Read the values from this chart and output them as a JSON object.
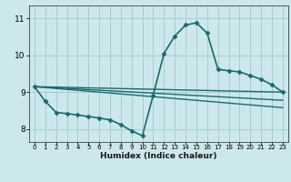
{
  "xlabel": "Humidex (Indice chaleur)",
  "background_color": "#cce8ec",
  "line_color": "#1a6b6b",
  "grid_color": "#aacccc",
  "xlim": [
    -0.5,
    23.5
  ],
  "ylim": [
    7.65,
    11.35
  ],
  "xticks": [
    0,
    1,
    2,
    3,
    4,
    5,
    6,
    7,
    8,
    9,
    10,
    11,
    12,
    13,
    14,
    15,
    16,
    17,
    18,
    19,
    20,
    21,
    22,
    23
  ],
  "yticks": [
    8,
    9,
    10,
    11
  ],
  "series": [
    {
      "x": [
        0,
        1,
        2,
        3,
        4,
        5,
        6,
        7,
        8,
        9,
        10,
        11,
        12,
        13,
        14,
        15,
        16,
        17,
        18,
        19,
        20,
        21,
        22,
        23
      ],
      "y": [
        9.15,
        8.75,
        8.45,
        8.42,
        8.38,
        8.34,
        8.3,
        8.25,
        8.12,
        7.95,
        7.82,
        8.92,
        10.05,
        10.52,
        10.82,
        10.88,
        10.6,
        9.62,
        9.58,
        9.55,
        9.45,
        9.35,
        9.2,
        9.0
      ],
      "marker": "D",
      "markersize": 2.5,
      "linewidth": 1.2
    },
    {
      "x": [
        0,
        23
      ],
      "y": [
        9.15,
        9.0
      ],
      "marker": null,
      "linewidth": 1.0
    },
    {
      "x": [
        0,
        23
      ],
      "y": [
        9.15,
        8.78
      ],
      "marker": null,
      "linewidth": 1.0
    },
    {
      "x": [
        0,
        23
      ],
      "y": [
        9.15,
        8.58
      ],
      "marker": null,
      "linewidth": 1.0
    }
  ]
}
